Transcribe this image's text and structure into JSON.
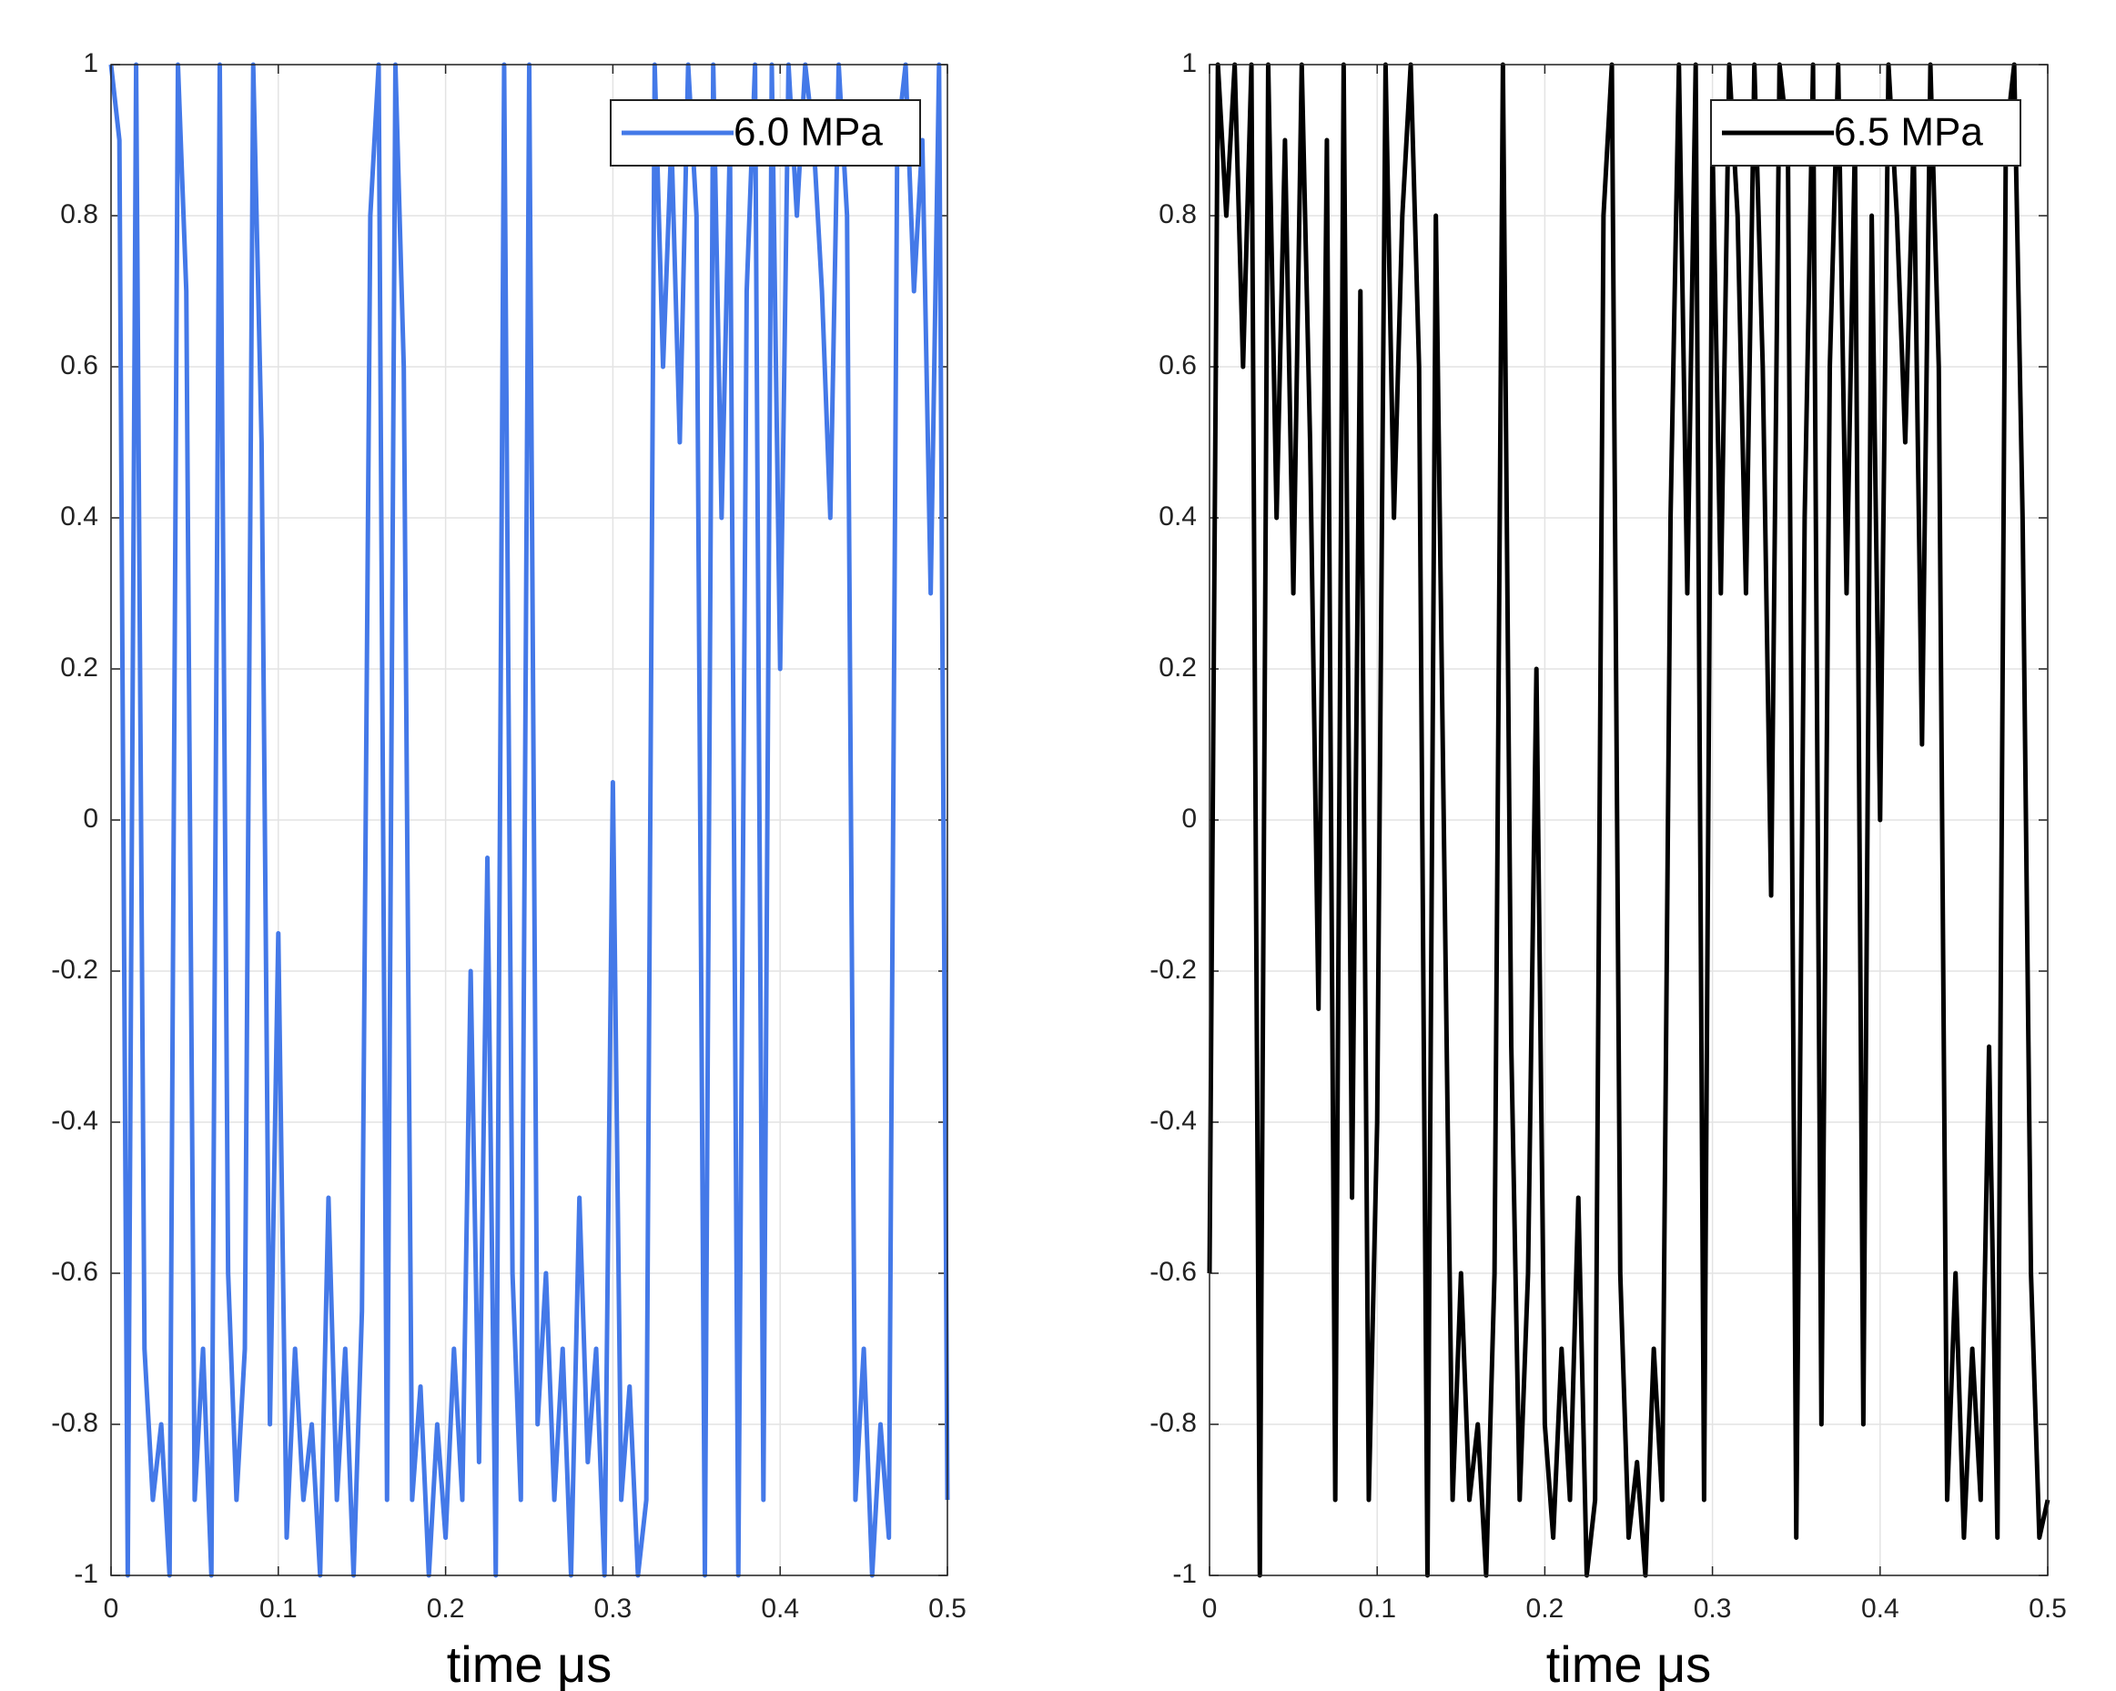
{
  "chart_data": [
    {
      "type": "line",
      "x_label": "time μs",
      "x": [
        0,
        0.005,
        0.01,
        0.015,
        0.02,
        0.025,
        0.03,
        0.035,
        0.04,
        0.045,
        0.05,
        0.055,
        0.06,
        0.065,
        0.07,
        0.075,
        0.08,
        0.085,
        0.09,
        0.095,
        0.1,
        0.105,
        0.11,
        0.115,
        0.12,
        0.125,
        0.13,
        0.135,
        0.14,
        0.145,
        0.15,
        0.155,
        0.16,
        0.165,
        0.17,
        0.175,
        0.18,
        0.185,
        0.19,
        0.195,
        0.2,
        0.205,
        0.21,
        0.215,
        0.22,
        0.225,
        0.23,
        0.235,
        0.24,
        0.245,
        0.25,
        0.255,
        0.26,
        0.265,
        0.27,
        0.275,
        0.28,
        0.285,
        0.29,
        0.295,
        0.3,
        0.305,
        0.31,
        0.315,
        0.32,
        0.325,
        0.33,
        0.335,
        0.34,
        0.345,
        0.35,
        0.355,
        0.36,
        0.365,
        0.37,
        0.375,
        0.38,
        0.385,
        0.39,
        0.395,
        0.4,
        0.405,
        0.41,
        0.415,
        0.42,
        0.425,
        0.43,
        0.435,
        0.44,
        0.445,
        0.45,
        0.455,
        0.46,
        0.465,
        0.47,
        0.475,
        0.48,
        0.485,
        0.49,
        0.495,
        0.5
      ],
      "series": [
        {
          "name": "6.0 MPa",
          "color": "#4479e8",
          "values": [
            1,
            0.9,
            -1,
            1,
            -0.7,
            -0.9,
            -0.8,
            -1,
            1,
            0.7,
            -0.9,
            -0.7,
            -1,
            1,
            -0.6,
            -0.9,
            -0.7,
            1,
            0.5,
            -0.8,
            -0.15,
            -0.95,
            -0.7,
            -0.9,
            -0.8,
            -1,
            -0.5,
            -0.9,
            -0.7,
            -1,
            -0.65,
            0.8,
            1,
            -0.9,
            1,
            0.6,
            -0.9,
            -0.75,
            -1,
            -0.8,
            -0.95,
            -0.7,
            -0.9,
            -0.2,
            -0.85,
            -0.05,
            -1,
            1,
            -0.6,
            -0.9,
            1,
            -0.8,
            -0.6,
            -0.9,
            -0.7,
            -1,
            -0.5,
            -0.85,
            -0.7,
            -1,
            0.05,
            -0.9,
            -0.75,
            -1,
            -0.9,
            1,
            0.6,
            0.9,
            0.5,
            1,
            0.8,
            -1,
            1,
            0.4,
            0.9,
            -1,
            0.7,
            1,
            -0.9,
            1,
            0.2,
            1,
            0.8,
            1,
            0.9,
            0.7,
            0.4,
            1,
            0.8,
            -0.9,
            -0.7,
            -1,
            -0.8,
            -0.95,
            0.9,
            1,
            0.7,
            0.9,
            0.3,
            1,
            -0.9
          ]
        }
      ],
      "xlim": [
        0,
        0.5
      ],
      "xticks": [
        0,
        0.1,
        0.2,
        0.3,
        0.4,
        0.5
      ],
      "ylim": [
        -1,
        1
      ],
      "yticks": [
        -1,
        -0.8,
        -0.6,
        -0.4,
        -0.2,
        0,
        0.2,
        0.4,
        0.6,
        0.8,
        1
      ],
      "grid": true,
      "legend": "upper right"
    },
    {
      "type": "line",
      "x_label": "time μs",
      "x": [
        0,
        0.005,
        0.01,
        0.015,
        0.02,
        0.025,
        0.03,
        0.035,
        0.04,
        0.045,
        0.05,
        0.055,
        0.06,
        0.065,
        0.07,
        0.075,
        0.08,
        0.085,
        0.09,
        0.095,
        0.1,
        0.105,
        0.11,
        0.115,
        0.12,
        0.125,
        0.13,
        0.135,
        0.14,
        0.145,
        0.15,
        0.155,
        0.16,
        0.165,
        0.17,
        0.175,
        0.18,
        0.185,
        0.19,
        0.195,
        0.2,
        0.205,
        0.21,
        0.215,
        0.22,
        0.225,
        0.23,
        0.235,
        0.24,
        0.245,
        0.25,
        0.255,
        0.26,
        0.265,
        0.27,
        0.275,
        0.28,
        0.285,
        0.29,
        0.295,
        0.3,
        0.305,
        0.31,
        0.315,
        0.32,
        0.325,
        0.33,
        0.335,
        0.34,
        0.345,
        0.35,
        0.355,
        0.36,
        0.365,
        0.37,
        0.375,
        0.38,
        0.385,
        0.39,
        0.395,
        0.4,
        0.405,
        0.41,
        0.415,
        0.42,
        0.425,
        0.43,
        0.435,
        0.44,
        0.445,
        0.45,
        0.455,
        0.46,
        0.465,
        0.47,
        0.475,
        0.48,
        0.485,
        0.49,
        0.495,
        0.5
      ],
      "series": [
        {
          "name": "6.5 MPa",
          "color": "#000000",
          "values": [
            -0.6,
            1,
            0.8,
            1,
            0.6,
            1,
            -1,
            1,
            0.4,
            0.9,
            0.3,
            1,
            0.5,
            -0.25,
            0.9,
            -0.9,
            1,
            -0.5,
            0.7,
            -0.9,
            -0.4,
            1,
            0.4,
            0.8,
            1,
            0.6,
            -1,
            0.8,
            -0.05,
            -0.9,
            -0.6,
            -0.9,
            -0.8,
            -1,
            -0.6,
            1,
            -0.3,
            -0.9,
            -0.6,
            0.2,
            -0.8,
            -0.95,
            -0.7,
            -0.9,
            -0.5,
            -1,
            -0.9,
            0.8,
            1,
            -0.6,
            -0.95,
            -0.85,
            -1,
            -0.7,
            -0.9,
            0.4,
            1,
            0.3,
            1,
            -0.9,
            0.9,
            0.3,
            1,
            0.8,
            0.3,
            1,
            0.6,
            -0.1,
            1,
            0.9,
            -0.95,
            0.4,
            1,
            -0.8,
            0.6,
            1,
            0.3,
            0.9,
            -0.8,
            0.8,
            0,
            1,
            0.8,
            0.5,
            0.9,
            0.1,
            1,
            0.6,
            -0.9,
            -0.6,
            -0.95,
            -0.7,
            -0.9,
            -0.3,
            -0.95,
            0.9,
            1,
            0.4,
            -0.6,
            -0.95,
            -0.9
          ]
        }
      ],
      "xlim": [
        0,
        0.5
      ],
      "xticks": [
        0,
        0.1,
        0.2,
        0.3,
        0.4,
        0.5
      ],
      "ylim": [
        -1,
        1
      ],
      "yticks": [
        -1,
        -0.8,
        -0.6,
        -0.4,
        -0.2,
        0,
        0.2,
        0.4,
        0.6,
        0.8,
        1
      ],
      "grid": true,
      "legend": "upper right"
    }
  ]
}
